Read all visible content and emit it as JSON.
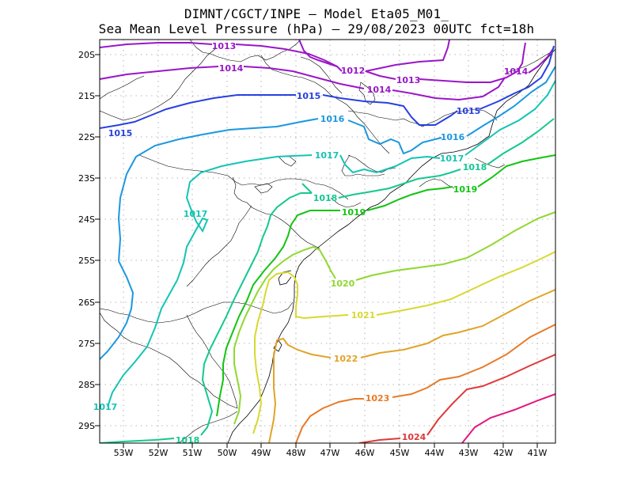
{
  "title_line1": "DIMNT/CGCT/INPE –  Model Eta05_M01_",
  "title_line2": "Sea Mean Level Pressure (hPa) – 29/08/2023 00UTC fct=18h",
  "axes": {
    "x_ticks": [
      "53W",
      "52W",
      "51W",
      "50W",
      "49W",
      "48W",
      "47W",
      "46W",
      "45W",
      "44W",
      "43W",
      "42W",
      "41W"
    ],
    "y_ticks": [
      "20S",
      "21S",
      "22S",
      "23S",
      "24S",
      "25S",
      "26S",
      "27S",
      "28S",
      "29S"
    ]
  },
  "contour_labels": [
    {
      "text": "1013",
      "color": "#9a16c8"
    },
    {
      "text": "1014",
      "color": "#9a16c8"
    },
    {
      "text": "1012",
      "color": "#9a16c8"
    },
    {
      "text": "1013",
      "color": "#9a16c8"
    },
    {
      "text": "1014",
      "color": "#9a16c8"
    },
    {
      "text": "1014",
      "color": "#9a16c8"
    },
    {
      "text": "1015",
      "color": "#2840e0"
    },
    {
      "text": "1015",
      "color": "#2840e0"
    },
    {
      "text": "1015",
      "color": "#2840e0"
    },
    {
      "text": "1016",
      "color": "#1a98e0"
    },
    {
      "text": "1016",
      "color": "#1a98e0"
    },
    {
      "text": "1017",
      "color": "#14c4b4"
    },
    {
      "text": "1017",
      "color": "#14c4b4"
    },
    {
      "text": "1017",
      "color": "#14c4b4"
    },
    {
      "text": "1017",
      "color": "#14c4b4"
    },
    {
      "text": "1018",
      "color": "#14c890"
    },
    {
      "text": "1018",
      "color": "#14c890"
    },
    {
      "text": "1018",
      "color": "#14c890"
    },
    {
      "text": "1019",
      "color": "#12c412"
    },
    {
      "text": "1019",
      "color": "#12c412"
    },
    {
      "text": "1020",
      "color": "#90d830"
    },
    {
      "text": "1021",
      "color": "#d8d830"
    },
    {
      "text": "1022",
      "color": "#e0a428"
    },
    {
      "text": "1023",
      "color": "#e87a28"
    },
    {
      "text": "1024",
      "color": "#e03838"
    }
  ]
}
